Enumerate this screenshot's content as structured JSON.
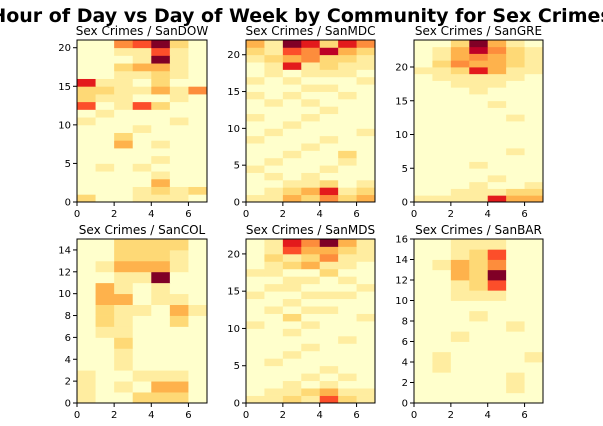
{
  "chart_data": {
    "type": "heatmap",
    "title": "Hour of Day vs Day of Week by Community for Sex Crimes",
    "colormap": [
      "#ffffcc",
      "#ffeda0",
      "#fed976",
      "#feb24c",
      "#fd8d3c",
      "#fc4e2a",
      "#e31a1c",
      "#bd0026",
      "#800026"
    ],
    "panels": [
      {
        "title": "Sex Crimes / SanDOW",
        "xlim": [
          0,
          7
        ],
        "ylim": [
          0,
          21
        ],
        "xticks": [
          0,
          2,
          4,
          6
        ],
        "yticks": [
          0,
          5,
          10,
          15,
          20
        ],
        "rows": [
          [
            2,
            0,
            0,
            1,
            1,
            1,
            0
          ],
          [
            0,
            0,
            0,
            1,
            2,
            1,
            2
          ],
          [
            0,
            0,
            0,
            0,
            3,
            0,
            0
          ],
          [
            0,
            0,
            0,
            0,
            1,
            0,
            0
          ],
          [
            0,
            1,
            0,
            1,
            0,
            0,
            0
          ],
          [
            0,
            0,
            0,
            0,
            1,
            0,
            0
          ],
          [
            0,
            0,
            0,
            0,
            0,
            0,
            0
          ],
          [
            0,
            0,
            3,
            0,
            1,
            0,
            0
          ],
          [
            0,
            0,
            2,
            0,
            0,
            0,
            0
          ],
          [
            0,
            0,
            0,
            1,
            0,
            0,
            0
          ],
          [
            1,
            0,
            0,
            0,
            0,
            1,
            0
          ],
          [
            0,
            1,
            0,
            0,
            0,
            0,
            0
          ],
          [
            5,
            0,
            1,
            5,
            2,
            0,
            0
          ],
          [
            2,
            1,
            1,
            0,
            0,
            1,
            0
          ],
          [
            2,
            2,
            1,
            1,
            3,
            1,
            4
          ],
          [
            6,
            1,
            1,
            0,
            2,
            0,
            0
          ],
          [
            0,
            0,
            1,
            1,
            2,
            1,
            0
          ],
          [
            0,
            0,
            2,
            3,
            3,
            1,
            0
          ],
          [
            0,
            0,
            0,
            1,
            8,
            1,
            0
          ],
          [
            0,
            0,
            1,
            1,
            5,
            1,
            0
          ],
          [
            0,
            0,
            4,
            5,
            8,
            2,
            0
          ]
        ]
      },
      {
        "title": "Sex Crimes / SanMDC",
        "xlim": [
          0,
          7
        ],
        "ylim": [
          0,
          22
        ],
        "xticks": [
          0,
          2,
          4,
          6
        ],
        "yticks": [
          0,
          5,
          10,
          15,
          20
        ],
        "rows": [
          [
            1,
            1,
            3,
            2,
            4,
            2,
            3
          ],
          [
            0,
            1,
            2,
            3,
            6,
            1,
            2
          ],
          [
            0,
            0,
            1,
            1,
            2,
            0,
            1
          ],
          [
            0,
            1,
            0,
            1,
            0,
            0,
            0
          ],
          [
            1,
            0,
            0,
            0,
            1,
            0,
            0
          ],
          [
            0,
            1,
            0,
            0,
            0,
            1,
            0
          ],
          [
            0,
            0,
            1,
            0,
            0,
            2,
            0
          ],
          [
            0,
            0,
            0,
            1,
            0,
            0,
            0
          ],
          [
            1,
            0,
            0,
            0,
            1,
            0,
            0
          ],
          [
            0,
            1,
            0,
            0,
            0,
            0,
            1
          ],
          [
            0,
            0,
            1,
            0,
            0,
            0,
            0
          ],
          [
            1,
            0,
            0,
            1,
            0,
            0,
            0
          ],
          [
            0,
            0,
            0,
            0,
            1,
            0,
            0
          ],
          [
            0,
            1,
            0,
            1,
            0,
            0,
            0
          ],
          [
            1,
            0,
            1,
            0,
            0,
            1,
            0
          ],
          [
            0,
            0,
            0,
            1,
            1,
            0,
            0
          ],
          [
            1,
            0,
            1,
            0,
            0,
            0,
            1
          ],
          [
            0,
            1,
            0,
            1,
            1,
            1,
            0
          ],
          [
            0,
            1,
            6,
            1,
            2,
            1,
            1
          ],
          [
            1,
            2,
            3,
            4,
            2,
            2,
            1
          ],
          [
            2,
            1,
            5,
            4,
            7,
            3,
            2
          ],
          [
            3,
            1,
            8,
            6,
            2,
            6,
            4
          ]
        ]
      },
      {
        "title": "Sex Crimes / SanGRE",
        "xlim": [
          0,
          7
        ],
        "ylim": [
          0,
          24
        ],
        "xticks": [
          0,
          2,
          4,
          6
        ],
        "yticks": [
          0,
          5,
          10,
          15,
          20
        ],
        "rows": [
          [
            1,
            1,
            1,
            1,
            6,
            3,
            3
          ],
          [
            0,
            0,
            1,
            1,
            1,
            2,
            2
          ],
          [
            0,
            0,
            0,
            1,
            0,
            0,
            1
          ],
          [
            0,
            0,
            0,
            0,
            1,
            0,
            0
          ],
          [
            0,
            0,
            0,
            0,
            0,
            0,
            0
          ],
          [
            0,
            0,
            0,
            1,
            0,
            0,
            0
          ],
          [
            0,
            0,
            0,
            0,
            0,
            0,
            0
          ],
          [
            0,
            0,
            0,
            0,
            0,
            1,
            0
          ],
          [
            0,
            0,
            0,
            0,
            0,
            0,
            0
          ],
          [
            0,
            0,
            0,
            0,
            0,
            0,
            0
          ],
          [
            0,
            0,
            0,
            0,
            0,
            0,
            0
          ],
          [
            0,
            0,
            0,
            0,
            0,
            0,
            0
          ],
          [
            0,
            0,
            0,
            0,
            0,
            1,
            0
          ],
          [
            0,
            0,
            0,
            0,
            0,
            0,
            0
          ],
          [
            0,
            0,
            0,
            0,
            1,
            0,
            0
          ],
          [
            0,
            0,
            0,
            0,
            0,
            0,
            0
          ],
          [
            0,
            0,
            0,
            1,
            0,
            0,
            0
          ],
          [
            0,
            0,
            1,
            1,
            1,
            0,
            0
          ],
          [
            0,
            1,
            1,
            1,
            1,
            1,
            0
          ],
          [
            1,
            1,
            2,
            6,
            3,
            1,
            1
          ],
          [
            0,
            2,
            4,
            3,
            3,
            2,
            1
          ],
          [
            0,
            1,
            3,
            4,
            3,
            2,
            1
          ],
          [
            0,
            1,
            3,
            7,
            4,
            2,
            1
          ],
          [
            0,
            0,
            2,
            8,
            3,
            1,
            0
          ]
        ]
      },
      {
        "title": "Sex Crimes / SanCOL",
        "xlim": [
          0,
          7
        ],
        "ylim": [
          0,
          15
        ],
        "xticks": [
          0,
          2,
          4,
          6
        ],
        "yticks": [
          0,
          2,
          4,
          6,
          8,
          10,
          12,
          14
        ],
        "rows": [
          [
            1,
            0,
            0,
            2,
            2,
            2,
            0
          ],
          [
            1,
            0,
            1,
            0,
            3,
            3,
            0
          ],
          [
            1,
            0,
            0,
            1,
            1,
            1,
            0
          ],
          [
            0,
            0,
            1,
            0,
            0,
            0,
            0
          ],
          [
            0,
            0,
            1,
            0,
            0,
            0,
            0
          ],
          [
            0,
            0,
            2,
            0,
            0,
            0,
            0
          ],
          [
            0,
            1,
            1,
            0,
            0,
            0,
            0
          ],
          [
            0,
            2,
            1,
            0,
            0,
            2,
            0
          ],
          [
            0,
            2,
            1,
            1,
            0,
            3,
            1
          ],
          [
            0,
            3,
            3,
            0,
            1,
            1,
            0
          ],
          [
            0,
            3,
            1,
            0,
            1,
            0,
            0
          ],
          [
            0,
            0,
            1,
            1,
            8,
            0,
            0
          ],
          [
            0,
            1,
            3,
            3,
            3,
            1,
            0
          ],
          [
            0,
            0,
            2,
            2,
            2,
            1,
            0
          ],
          [
            0,
            0,
            2,
            2,
            2,
            2,
            0
          ]
        ]
      },
      {
        "title": "Sex Crimes / SanMDS",
        "xlim": [
          0,
          7
        ],
        "ylim": [
          0,
          22
        ],
        "xticks": [
          0,
          2,
          4,
          6
        ],
        "yticks": [
          0,
          5,
          10,
          15,
          20
        ],
        "rows": [
          [
            1,
            1,
            2,
            1,
            5,
            2,
            1
          ],
          [
            0,
            1,
            1,
            2,
            3,
            1,
            1
          ],
          [
            0,
            0,
            1,
            0,
            1,
            0,
            0
          ],
          [
            0,
            0,
            0,
            1,
            0,
            1,
            0
          ],
          [
            0,
            0,
            0,
            0,
            1,
            0,
            0
          ],
          [
            0,
            1,
            0,
            0,
            0,
            0,
            0
          ],
          [
            0,
            0,
            1,
            0,
            0,
            0,
            0
          ],
          [
            0,
            0,
            0,
            1,
            0,
            0,
            0
          ],
          [
            0,
            0,
            0,
            0,
            0,
            1,
            0
          ],
          [
            0,
            0,
            1,
            0,
            0,
            0,
            0
          ],
          [
            1,
            0,
            0,
            1,
            0,
            0,
            0
          ],
          [
            0,
            0,
            2,
            0,
            0,
            0,
            1
          ],
          [
            0,
            1,
            0,
            1,
            1,
            0,
            0
          ],
          [
            0,
            0,
            1,
            0,
            0,
            0,
            0
          ],
          [
            1,
            0,
            0,
            1,
            1,
            1,
            0
          ],
          [
            0,
            1,
            1,
            0,
            0,
            0,
            1
          ],
          [
            0,
            0,
            1,
            1,
            0,
            1,
            0
          ],
          [
            1,
            1,
            0,
            0,
            2,
            0,
            0
          ],
          [
            0,
            1,
            2,
            3,
            1,
            1,
            0
          ],
          [
            0,
            2,
            1,
            2,
            4,
            1,
            1
          ],
          [
            0,
            1,
            5,
            3,
            3,
            2,
            1
          ],
          [
            0,
            1,
            6,
            4,
            8,
            3,
            1
          ]
        ]
      },
      {
        "title": "Sex Crimes / SanBAR",
        "xlim": [
          0,
          7
        ],
        "ylim": [
          0,
          16
        ],
        "xticks": [
          0,
          2,
          4,
          6
        ],
        "yticks": [
          0,
          2,
          4,
          6,
          8,
          10,
          12,
          14,
          16
        ],
        "rows": [
          [
            0,
            0,
            0,
            0,
            0,
            0,
            0
          ],
          [
            0,
            0,
            0,
            0,
            0,
            1,
            0
          ],
          [
            0,
            0,
            0,
            0,
            0,
            1,
            0
          ],
          [
            0,
            1,
            0,
            0,
            0,
            0,
            0
          ],
          [
            0,
            1,
            0,
            0,
            0,
            0,
            1
          ],
          [
            0,
            0,
            0,
            0,
            0,
            0,
            0
          ],
          [
            0,
            0,
            1,
            0,
            0,
            0,
            0
          ],
          [
            0,
            0,
            0,
            0,
            0,
            1,
            0
          ],
          [
            0,
            0,
            0,
            1,
            0,
            0,
            0
          ],
          [
            0,
            0,
            0,
            0,
            0,
            0,
            0
          ],
          [
            0,
            0,
            1,
            1,
            1,
            0,
            0
          ],
          [
            0,
            0,
            1,
            2,
            5,
            0,
            0
          ],
          [
            0,
            0,
            3,
            2,
            8,
            0,
            0
          ],
          [
            0,
            1,
            3,
            2,
            4,
            0,
            0
          ],
          [
            0,
            0,
            1,
            2,
            5,
            0,
            0
          ],
          [
            0,
            0,
            1,
            1,
            1,
            0,
            0
          ]
        ]
      }
    ]
  }
}
